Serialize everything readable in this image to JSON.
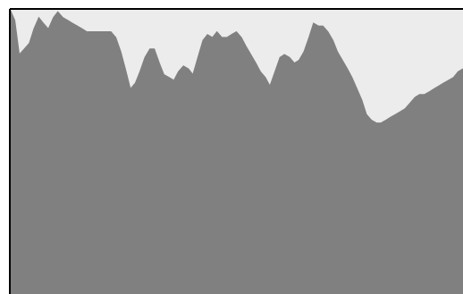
{
  "chart_data": {
    "type": "area",
    "title": "",
    "xlabel": "",
    "ylabel": "",
    "grid": false,
    "legend": "none",
    "xlim": [
      0,
      100
    ],
    "ylim": [
      0,
      1
    ],
    "x": [
      0,
      1.1,
      2.1,
      3.2,
      4.3,
      5.3,
      6.4,
      7.4,
      8.5,
      9.6,
      10.6,
      11.7,
      12.8,
      13.8,
      14.9,
      16.0,
      17.0,
      18.1,
      19.1,
      20.2,
      21.3,
      22.3,
      23.4,
      24.5,
      25.5,
      26.6,
      27.7,
      28.7,
      29.8,
      30.9,
      31.9,
      33.0,
      34.0,
      35.1,
      36.2,
      37.2,
      38.3,
      39.4,
      40.4,
      41.5,
      42.6,
      43.6,
      44.7,
      45.7,
      46.8,
      47.9,
      48.9,
      50.0,
      51.1,
      52.1,
      53.2,
      54.3,
      55.3,
      56.4,
      57.4,
      58.5,
      59.6,
      60.6,
      61.7,
      62.8,
      63.8,
      64.9,
      66.0,
      67.0,
      68.1,
      69.1,
      70.2,
      71.3,
      72.3,
      73.4,
      74.5,
      75.5,
      76.6,
      77.7,
      78.7,
      79.8,
      80.9,
      81.9,
      83.0,
      84.0,
      85.1,
      86.2,
      87.2,
      88.3,
      89.4,
      90.4,
      91.5,
      92.6,
      93.6,
      94.7,
      95.7,
      96.8,
      97.9,
      98.9,
      100.0
    ],
    "values": [
      1.0,
      0.96,
      0.84,
      0.86,
      0.88,
      0.93,
      0.97,
      0.95,
      0.93,
      0.97,
      0.99,
      0.97,
      0.96,
      0.95,
      0.94,
      0.93,
      0.92,
      0.92,
      0.92,
      0.92,
      0.92,
      0.92,
      0.9,
      0.85,
      0.79,
      0.72,
      0.74,
      0.78,
      0.83,
      0.86,
      0.86,
      0.81,
      0.77,
      0.76,
      0.75,
      0.78,
      0.8,
      0.79,
      0.77,
      0.83,
      0.89,
      0.91,
      0.9,
      0.92,
      0.9,
      0.9,
      0.91,
      0.92,
      0.9,
      0.87,
      0.84,
      0.81,
      0.78,
      0.76,
      0.73,
      0.78,
      0.83,
      0.84,
      0.83,
      0.81,
      0.82,
      0.85,
      0.9,
      0.95,
      0.94,
      0.94,
      0.92,
      0.89,
      0.85,
      0.82,
      0.79,
      0.76,
      0.72,
      0.68,
      0.63,
      0.61,
      0.6,
      0.6,
      0.61,
      0.62,
      0.63,
      0.64,
      0.65,
      0.67,
      0.69,
      0.7,
      0.7,
      0.71,
      0.72,
      0.73,
      0.74,
      0.75,
      0.76,
      0.78,
      0.79
    ],
    "colors": {
      "fill": "#808080",
      "background": "#ececec",
      "border": "#000000"
    }
  }
}
